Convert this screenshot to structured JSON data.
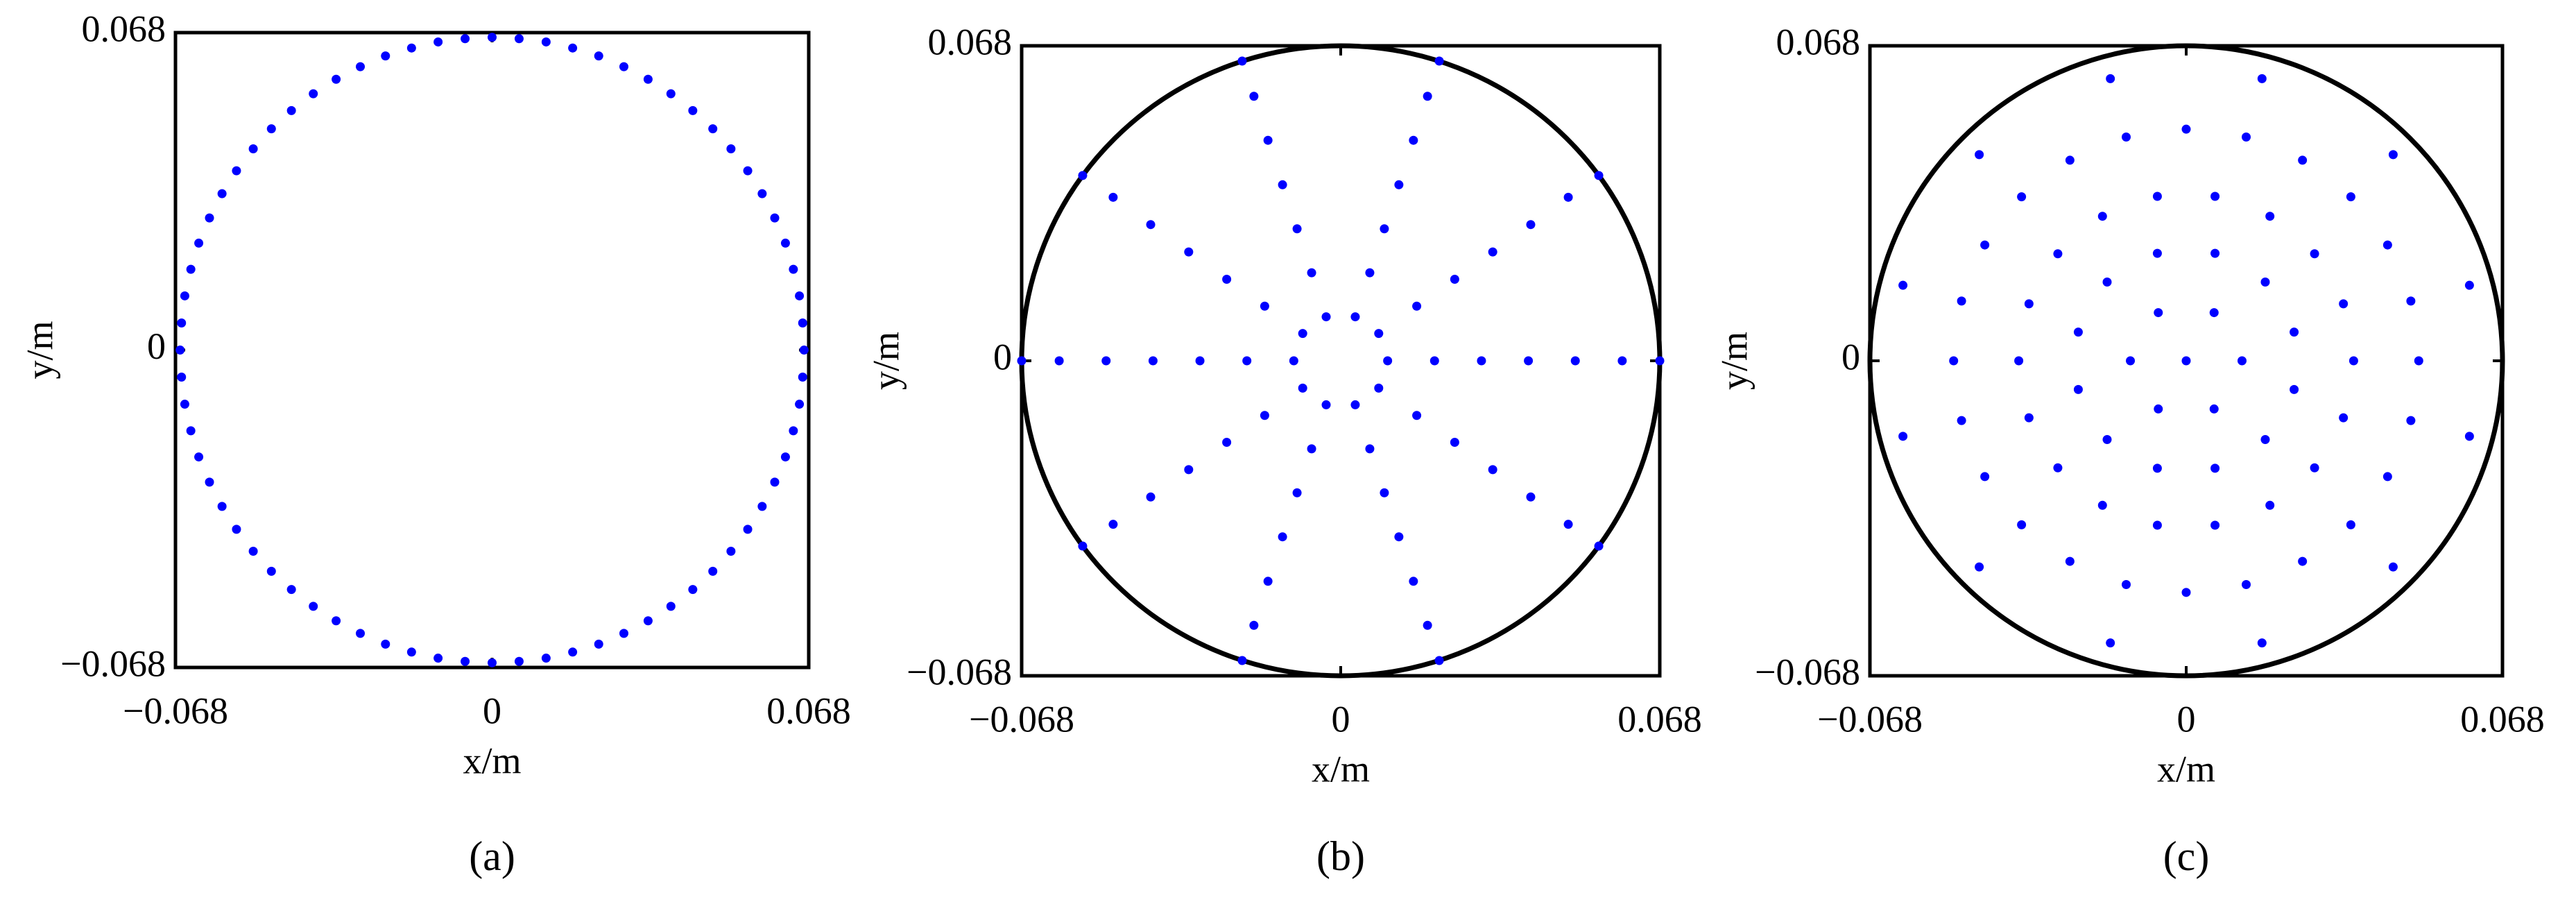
{
  "chart_data": [
    {
      "type": "scatter",
      "caption": "(a)",
      "x_label": "x/m",
      "y_label": "y/m",
      "color": "#0000ff",
      "boundary_circle": false,
      "xlim": [
        -0.068,
        0.068
      ],
      "ylim": [
        -0.068,
        0.068
      ],
      "xticks": [
        {
          "value": -0.068,
          "label": "−0.068"
        },
        0,
        0.068
      ],
      "yticks": [
        {
          "value": -0.068,
          "label": "−0.068"
        },
        0,
        0.068
      ],
      "x": [
        0.067,
        0.0667,
        0.066,
        0.0647,
        0.063,
        0.0607,
        0.058,
        0.0549,
        0.0513,
        0.0474,
        0.0431,
        0.0384,
        0.0335,
        0.0283,
        0.0229,
        0.0173,
        0.0116,
        0.0058,
        0,
        -0.0058,
        -0.0116,
        -0.0173,
        -0.0229,
        -0.0283,
        -0.0335,
        -0.0384,
        -0.0431,
        -0.0474,
        -0.0513,
        -0.0549,
        -0.058,
        -0.0607,
        -0.063,
        -0.0647,
        -0.066,
        -0.0667,
        -0.067,
        -0.0667,
        -0.066,
        -0.0647,
        -0.063,
        -0.0607,
        -0.058,
        -0.0549,
        -0.0513,
        -0.0474,
        -0.0431,
        -0.0384,
        -0.0335,
        -0.0283,
        -0.0229,
        -0.0173,
        -0.0116,
        -0.0058,
        0,
        0.0058,
        0.0116,
        0.0173,
        0.0229,
        0.0283,
        0.0335,
        0.0384,
        0.0431,
        0.0474,
        0.0513,
        0.0549,
        0.058,
        0.0607,
        0.063,
        0.0647,
        0.066,
        0.0667
      ],
      "y": [
        0,
        0.0058,
        0.0116,
        0.0173,
        0.0229,
        0.0283,
        0.0335,
        0.0384,
        0.0431,
        0.0474,
        0.0513,
        0.0549,
        0.058,
        0.0607,
        0.063,
        0.0647,
        0.066,
        0.0667,
        0.067,
        0.0667,
        0.066,
        0.0647,
        0.063,
        0.0607,
        0.058,
        0.0549,
        0.0513,
        0.0474,
        0.0431,
        0.0384,
        0.0335,
        0.0283,
        0.0229,
        0.0173,
        0.0116,
        0.0058,
        0,
        -0.0058,
        -0.0116,
        -0.0173,
        -0.0229,
        -0.0283,
        -0.0335,
        -0.0384,
        -0.0431,
        -0.0474,
        -0.0513,
        -0.0549,
        -0.058,
        -0.0607,
        -0.063,
        -0.0647,
        -0.066,
        -0.0667,
        -0.067,
        -0.0667,
        -0.066,
        -0.0647,
        -0.063,
        -0.0607,
        -0.058,
        -0.0549,
        -0.0513,
        -0.0474,
        -0.0431,
        -0.0384,
        -0.0335,
        -0.0283,
        -0.0229,
        -0.0173,
        -0.0116,
        -0.0058
      ]
    },
    {
      "type": "scatter",
      "caption": "(b)",
      "x_label": "x/m",
      "y_label": "y/m",
      "color": "#0000ff",
      "boundary_circle": true,
      "xlim": [
        -0.068,
        0.068
      ],
      "ylim": [
        -0.068,
        0.068
      ],
      "xticks": [
        {
          "value": -0.068,
          "label": "−0.068"
        },
        0,
        0.068
      ],
      "yticks": [
        {
          "value": -0.068,
          "label": "−0.068"
        },
        0,
        0.068
      ],
      "x": [
        0.01,
        0.02,
        0.03,
        0.04,
        0.05,
        0.06,
        0.068,
        0.0081,
        0.0162,
        0.0243,
        0.0324,
        0.0405,
        0.0485,
        0.055,
        0.0031,
        0.0062,
        0.0093,
        0.0124,
        0.0155,
        0.0185,
        0.021,
        -0.0031,
        -0.0062,
        -0.0093,
        -0.0124,
        -0.0155,
        -0.0185,
        -0.021,
        -0.0081,
        -0.0162,
        -0.0243,
        -0.0324,
        -0.0405,
        -0.0485,
        -0.055,
        -0.01,
        -0.02,
        -0.03,
        -0.04,
        -0.05,
        -0.06,
        -0.068,
        -0.0081,
        -0.0162,
        -0.0243,
        -0.0324,
        -0.0405,
        -0.0485,
        -0.055,
        -0.0031,
        -0.0062,
        -0.0093,
        -0.0124,
        -0.0155,
        -0.0185,
        -0.021,
        0.0031,
        0.0062,
        0.0093,
        0.0124,
        0.0155,
        0.0185,
        0.021,
        0.0081,
        0.0162,
        0.0243,
        0.0324,
        0.0405,
        0.0485,
        0.055
      ],
      "y": [
        0,
        0,
        0,
        0,
        0,
        0,
        0,
        0.0059,
        0.0118,
        0.0176,
        0.0235,
        0.0294,
        0.0353,
        0.04,
        0.0095,
        0.019,
        0.0285,
        0.038,
        0.0476,
        0.0571,
        0.0647,
        0.0095,
        0.019,
        0.0285,
        0.038,
        0.0476,
        0.0571,
        0.0647,
        0.0059,
        0.0118,
        0.0176,
        0.0235,
        0.0294,
        0.0353,
        0.04,
        0,
        0,
        0,
        0,
        0,
        0,
        0,
        -0.0059,
        -0.0118,
        -0.0176,
        -0.0235,
        -0.0294,
        -0.0353,
        -0.04,
        -0.0095,
        -0.019,
        -0.0285,
        -0.038,
        -0.0476,
        -0.0571,
        -0.0647,
        -0.0095,
        -0.019,
        -0.0285,
        -0.038,
        -0.0476,
        -0.0571,
        -0.0647,
        -0.0059,
        -0.0118,
        -0.0176,
        -0.0235,
        -0.0294,
        -0.0353,
        -0.04
      ]
    },
    {
      "type": "scatter",
      "caption": "(c)",
      "x_label": "x/m",
      "y_label": "y/m",
      "color": "#0000ff",
      "boundary_circle": true,
      "xlim": [
        -0.068,
        0.068
      ],
      "ylim": [
        -0.068,
        0.068
      ],
      "xticks": [
        {
          "value": -0.068,
          "label": "−0.068"
        },
        0,
        0.068
      ],
      "yticks": [
        {
          "value": -0.068,
          "label": "−0.068"
        },
        0,
        0.068
      ],
      "x": [
        0,
        0.012,
        0.006,
        -0.006,
        -0.012,
        -0.006,
        0.006,
        0.0232,
        0.017,
        0.0062,
        -0.0062,
        -0.017,
        -0.0232,
        -0.0232,
        -0.017,
        -0.0062,
        0.0062,
        0.017,
        0.0232,
        0.036,
        0.0338,
        0.0276,
        0.018,
        0.0062,
        -0.0062,
        -0.018,
        -0.0276,
        -0.0338,
        -0.036,
        -0.0338,
        -0.0276,
        -0.018,
        -0.0062,
        0.0062,
        0.018,
        0.0276,
        0.0338,
        0.05,
        0.0483,
        0.0433,
        0.0354,
        0.025,
        0.0129,
        0,
        -0.0129,
        -0.025,
        -0.0354,
        -0.0433,
        -0.0483,
        -0.05,
        -0.0483,
        -0.0433,
        -0.0354,
        -0.025,
        -0.0129,
        0,
        0.0129,
        0.025,
        0.0354,
        0.0433,
        0.0483,
        0.0609,
        0.0445,
        0.0163,
        -0.0163,
        -0.0445,
        -0.0609,
        -0.0609,
        -0.0445,
        -0.0163,
        0.0163,
        0.0445,
        0.0609
      ],
      "y": [
        0,
        0,
        0.0104,
        0.0104,
        0,
        -0.0104,
        -0.0104,
        0.0062,
        0.017,
        0.0232,
        0.0232,
        0.017,
        0.0062,
        -0.0062,
        -0.017,
        -0.0232,
        -0.0232,
        -0.017,
        -0.0062,
        0,
        0.0123,
        0.0231,
        0.0312,
        0.0355,
        0.0355,
        0.0312,
        0.0231,
        0.0123,
        0,
        -0.0123,
        -0.0231,
        -0.0312,
        -0.0355,
        -0.0355,
        -0.0312,
        -0.0231,
        -0.0123,
        0,
        0.0129,
        0.025,
        0.0354,
        0.0433,
        0.0483,
        0.05,
        0.0483,
        0.0433,
        0.0354,
        0.025,
        0.0129,
        0,
        -0.0129,
        -0.025,
        -0.0354,
        -0.0433,
        -0.0483,
        -0.05,
        -0.0483,
        -0.0433,
        -0.0354,
        -0.025,
        -0.0129,
        0.0163,
        0.0445,
        0.0609,
        0.0609,
        0.0445,
        0.0163,
        -0.0163,
        -0.0445,
        -0.0609,
        -0.0609,
        -0.0445,
        -0.0163
      ]
    }
  ]
}
